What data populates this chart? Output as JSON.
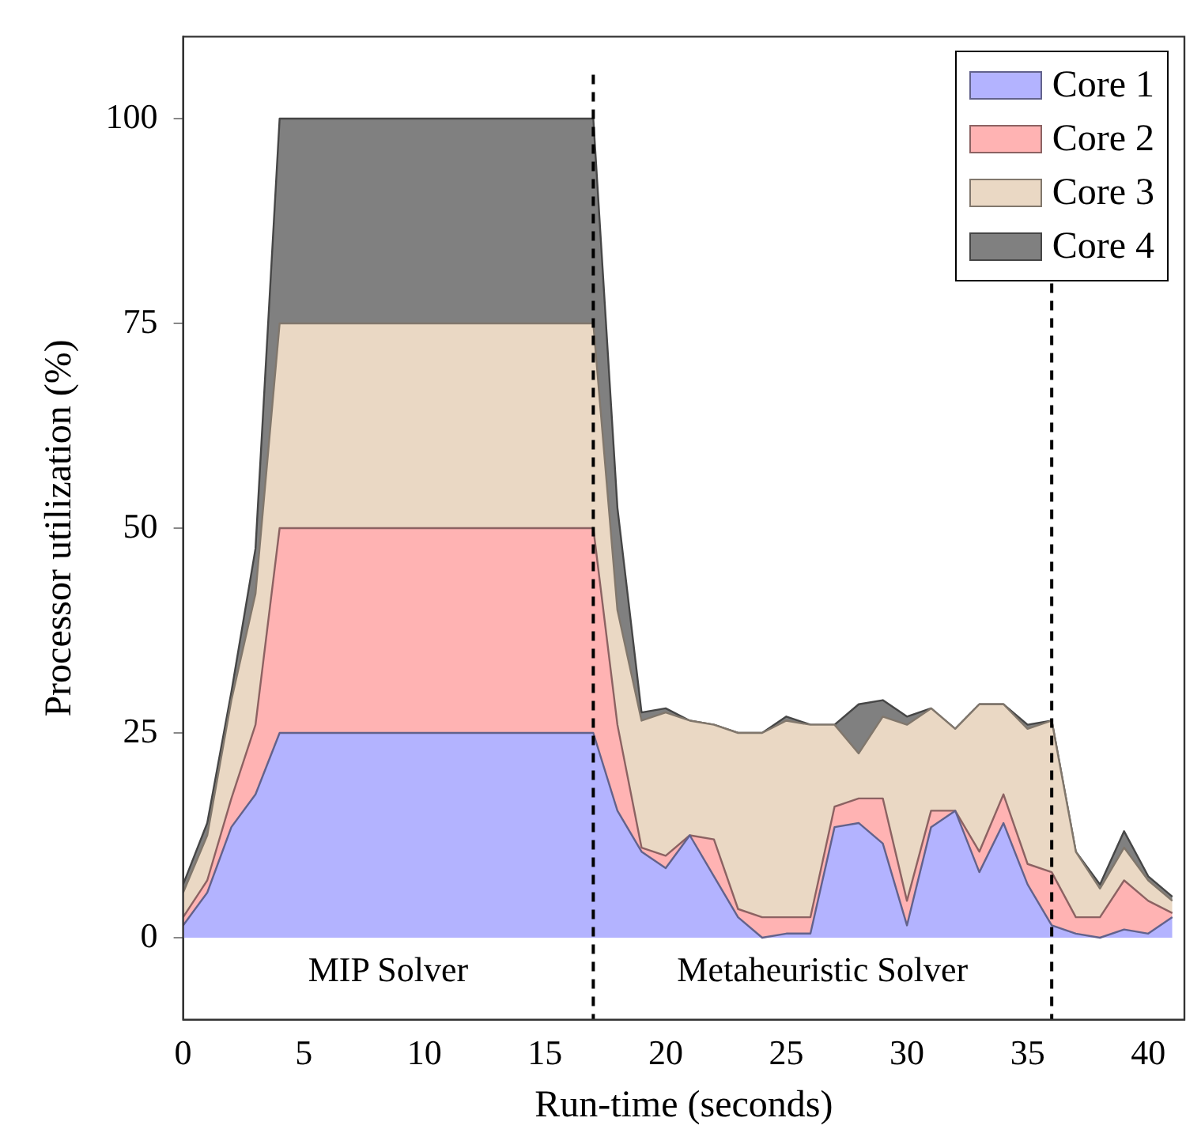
{
  "chart_data": {
    "type": "area",
    "stacked": true,
    "xlabel": "Run-time (seconds)",
    "ylabel": "Processor utilization (%)",
    "x": [
      0,
      1,
      2,
      3,
      4,
      5,
      6,
      7,
      8,
      9,
      10,
      11,
      12,
      13,
      14,
      15,
      16,
      17,
      18,
      19,
      20,
      21,
      22,
      23,
      24,
      25,
      26,
      27,
      28,
      29,
      30,
      31,
      32,
      33,
      34,
      35,
      36,
      37,
      38,
      39,
      40,
      41
    ],
    "series": [
      {
        "name": "Core 1",
        "color": "#b3b3ff",
        "values": [
          1.5,
          5.5,
          13.5,
          17.5,
          25,
          25,
          25,
          25,
          25,
          25,
          25,
          25,
          25,
          25,
          25,
          25,
          25,
          25,
          15.5,
          10.5,
          8.5,
          12.5,
          7.5,
          2.5,
          0,
          0.5,
          0.5,
          13.5,
          14,
          11.5,
          1.5,
          13.5,
          15.5,
          8,
          14,
          6.5,
          1.5,
          0.5,
          0,
          1,
          0.5,
          2.5
        ]
      },
      {
        "name": "Core 2",
        "color": "#ffb3b3",
        "values": [
          1,
          1.5,
          3.5,
          8.5,
          25,
          25,
          25,
          25,
          25,
          25,
          25,
          25,
          25,
          25,
          25,
          25,
          25,
          25,
          10.5,
          0.5,
          1.5,
          0,
          4.5,
          1,
          2.5,
          2,
          2,
          2.5,
          3,
          5.5,
          3,
          2,
          0,
          2.5,
          3.5,
          2.5,
          6.5,
          2,
          2.5,
          6,
          4,
          0.5
        ]
      },
      {
        "name": "Core 3",
        "color": "#ead8c4",
        "values": [
          3,
          5.5,
          12,
          16,
          25,
          25,
          25,
          25,
          25,
          25,
          25,
          25,
          25,
          25,
          25,
          25,
          25,
          25,
          14,
          15.5,
          17.5,
          14,
          14,
          21.5,
          22.5,
          24,
          23.5,
          10,
          5.5,
          10,
          21.5,
          12.5,
          10,
          18,
          11,
          16.5,
          18.5,
          8,
          3.5,
          4,
          2.5,
          1.5
        ]
      },
      {
        "name": "Core 4",
        "color": "#808080",
        "values": [
          1,
          1.5,
          1,
          5.5,
          25,
          25,
          25,
          25,
          25,
          25,
          25,
          25,
          25,
          25,
          25,
          25,
          25,
          25,
          12.5,
          1,
          0.5,
          0,
          0,
          0,
          0,
          0.5,
          0,
          0,
          6,
          2,
          1,
          0,
          0,
          0,
          0,
          0.5,
          0,
          0,
          0.5,
          2,
          0.5,
          0.5
        ]
      }
    ],
    "xlim": [
      0,
      41.5
    ],
    "xticks": [
      0,
      5,
      10,
      15,
      20,
      25,
      30,
      35,
      40
    ],
    "ylim": [
      -10,
      110
    ],
    "yticks": [
      0,
      25,
      50,
      75,
      100
    ],
    "ref_lines": [
      {
        "axis": "x",
        "value": 17,
        "color": "#000000",
        "line_style": "dashed"
      },
      {
        "axis": "x",
        "value": 36,
        "color": "#000000",
        "line_style": "dashed"
      }
    ],
    "annotations": [
      "MIP Solver",
      "Metaheuristic Solver"
    ],
    "legend": "top right",
    "grid": false,
    "marker": "none",
    "line_style": "solid"
  }
}
